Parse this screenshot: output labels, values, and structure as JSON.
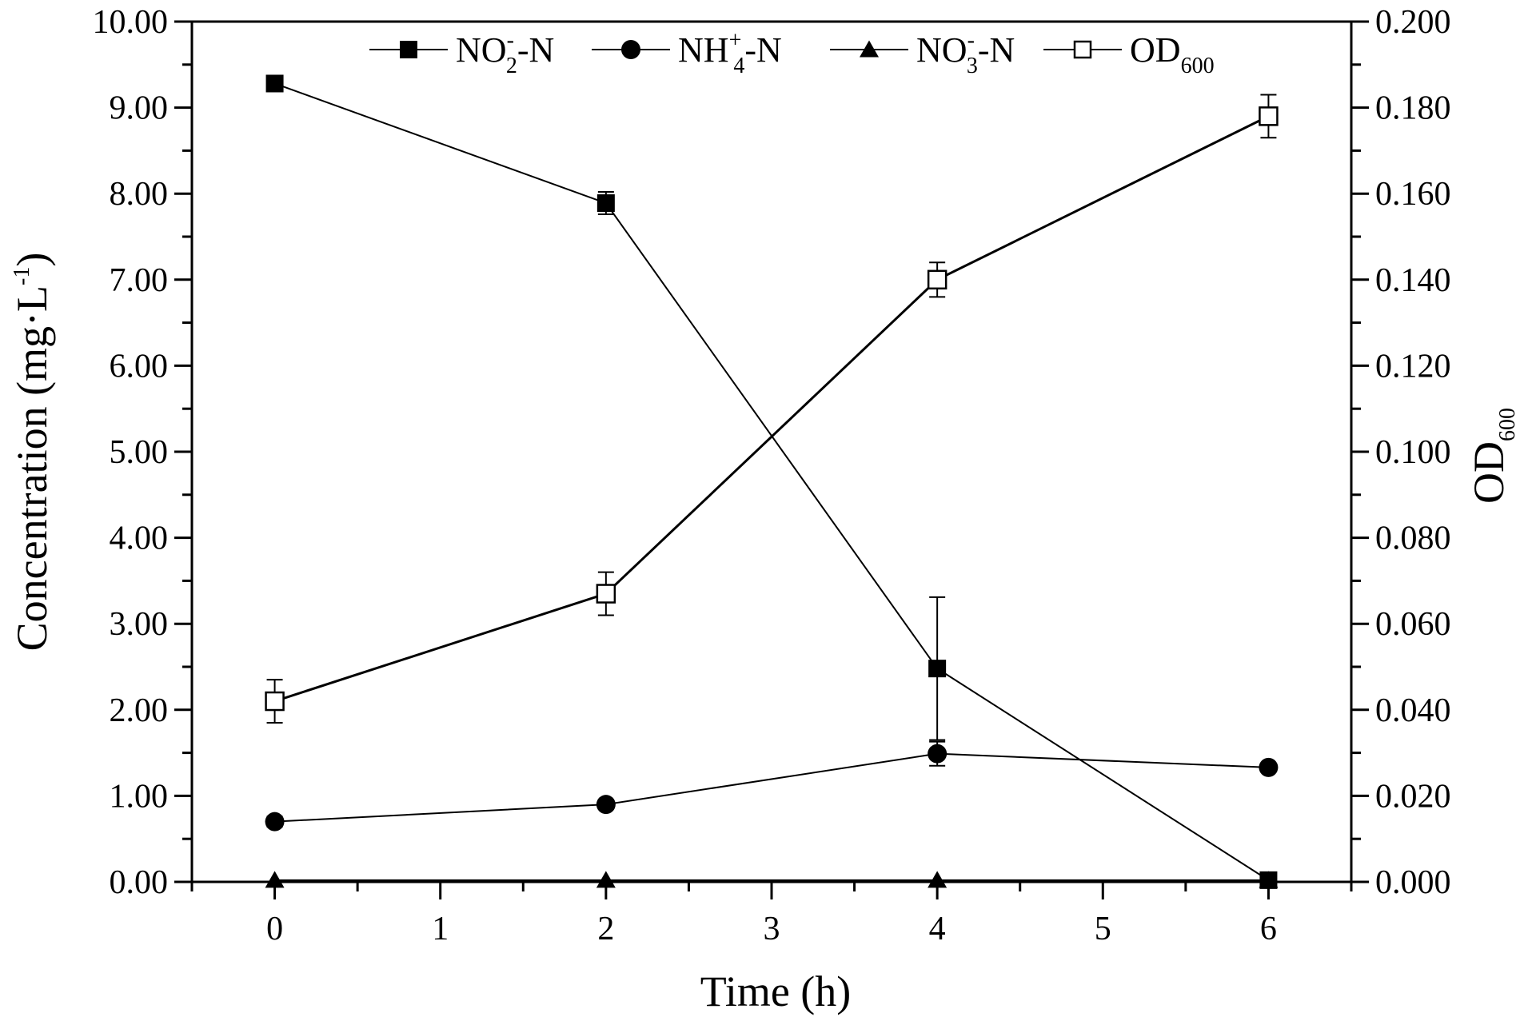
{
  "chart_data": {
    "type": "line",
    "title": "",
    "xlabel": "Time (h)",
    "ylabel_left": {
      "text": "Concentration (mg·L",
      "superscript": "-1",
      "close": ")"
    },
    "ylabel_right": {
      "base": "OD",
      "subscript": "600"
    },
    "x": [
      0,
      2,
      4,
      6
    ],
    "xlim": [
      -0.5,
      6.5
    ],
    "x_ticks": [
      "0",
      "1",
      "2",
      "3",
      "4",
      "5",
      "6"
    ],
    "ylim_left": [
      0,
      10
    ],
    "y_ticks_left": [
      "0.00",
      "1.00",
      "2.00",
      "3.00",
      "4.00",
      "5.00",
      "6.00",
      "7.00",
      "8.00",
      "9.00",
      "10.00"
    ],
    "ylim_right": [
      0,
      0.2
    ],
    "y_ticks_right": [
      "0.000",
      "0.020",
      "0.040",
      "0.060",
      "0.080",
      "0.100",
      "0.120",
      "0.140",
      "0.160",
      "0.180",
      "0.200"
    ],
    "grid": false,
    "legend_position": "top",
    "series": [
      {
        "name": "NO2–-N",
        "legend": {
          "base": "NO",
          "sup": "-",
          "sub": "2",
          "tail": "-N"
        },
        "marker": "filled-square",
        "axis": "left",
        "values": [
          9.28,
          7.89,
          2.48,
          0.02
        ],
        "errors": [
          0.04,
          0.13,
          0.83,
          0.0
        ]
      },
      {
        "name": "NH4+-N",
        "legend": {
          "base": "NH",
          "sup": "+",
          "sub": "4",
          "tail": "-N"
        },
        "marker": "filled-circle",
        "axis": "left",
        "values": [
          0.7,
          0.9,
          1.49,
          1.33
        ],
        "errors": [
          0.06,
          0.05,
          0.14,
          0.05
        ]
      },
      {
        "name": "NO3–-N",
        "legend": {
          "base": "NO",
          "sup": "-",
          "sub": "3",
          "tail": "-N"
        },
        "marker": "filled-triangle",
        "axis": "left",
        "values": [
          0.02,
          0.02,
          0.02,
          0.02
        ],
        "errors": [
          0,
          0,
          0,
          0
        ]
      },
      {
        "name": "OD600",
        "legend": {
          "base": "OD",
          "sup": "",
          "sub": "600",
          "tail": ""
        },
        "marker": "open-square",
        "axis": "right",
        "values": [
          0.042,
          0.067,
          0.14,
          0.178
        ],
        "errors": [
          0.005,
          0.005,
          0.004,
          0.005
        ]
      }
    ]
  }
}
